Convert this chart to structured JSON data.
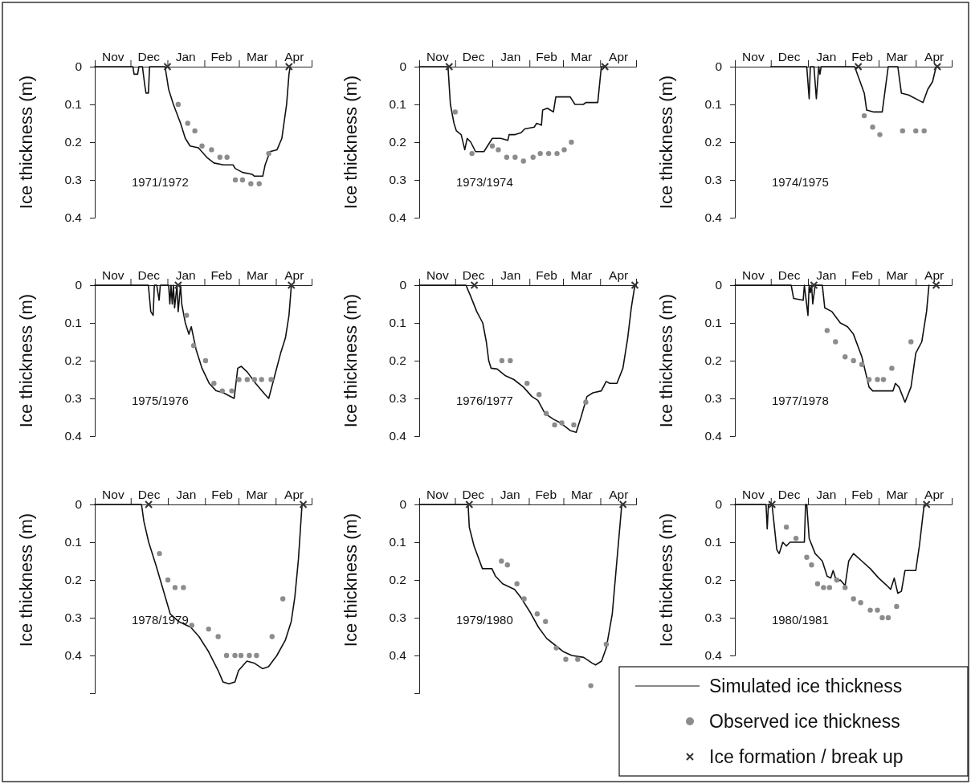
{
  "chart_data": [
    {
      "type": "line",
      "title": "1971/1972",
      "ylabel": "Ice thickness (m)",
      "xlim": [
        "1971-11-01",
        "1972-05-01"
      ],
      "ylim": [
        0.4,
        0
      ],
      "yticks": [
        0,
        0.1,
        0.2,
        0.3,
        0.4
      ],
      "xticks": [
        {
          "value": "1971-11-01",
          "label": null
        },
        {
          "value": "1971-11-16",
          "label": "Nov"
        },
        {
          "value": "1971-12-01",
          "label": null
        },
        {
          "value": "1971-12-16",
          "label": "Dec"
        },
        {
          "value": "1972-01-01",
          "label": null
        },
        {
          "value": "1972-01-16",
          "label": "Jan"
        },
        {
          "value": "1972-02-01",
          "label": null
        },
        {
          "value": "1972-02-15",
          "label": "Feb"
        },
        {
          "value": "1972-03-01",
          "label": null
        },
        {
          "value": "1972-03-16",
          "label": "Mar"
        },
        {
          "value": "1972-04-01",
          "label": null
        },
        {
          "value": "1972-04-16",
          "label": "Apr"
        },
        {
          "value": "1972-05-01",
          "label": null
        }
      ],
      "series": [
        {
          "type": "line",
          "color": "#111111",
          "marker": "none",
          "x": [
            "1971-11-01",
            "1971-12-03",
            "1971-12-04",
            "1971-12-07",
            "1971-12-08",
            "1971-12-11",
            "1971-12-13",
            "1971-12-14",
            "1971-12-16",
            "1971-12-17",
            "1971-12-30",
            "1972-01-02",
            "1972-01-06",
            "1972-01-12",
            "1972-01-16",
            "1972-01-20",
            "1972-01-27",
            "1972-02-03",
            "1972-02-09",
            "1972-02-17",
            "1972-02-25",
            "1972-02-27",
            "1972-03-04",
            "1972-03-12",
            "1972-03-14",
            "1972-03-21",
            "1972-03-23",
            "1972-03-27",
            "1972-04-02",
            "1972-04-06",
            "1972-04-10",
            "1972-04-12",
            "1972-04-13"
          ],
          "values": [
            0,
            0,
            0.02,
            0.02,
            0,
            0,
            0.05,
            0.07,
            0.07,
            0,
            0,
            0.06,
            0.1,
            0.15,
            0.19,
            0.21,
            0.215,
            0.24,
            0.255,
            0.26,
            0.26,
            0.27,
            0.28,
            0.285,
            0.29,
            0.29,
            0.26,
            0.225,
            0.22,
            0.19,
            0.1,
            0.02,
            0
          ]
        },
        {
          "type": "scatter",
          "color": "#8c8c8c",
          "marker": "circle",
          "x": [
            "1972-01-10",
            "1972-01-18",
            "1972-01-24",
            "1972-01-30",
            "1972-02-07",
            "1972-02-14",
            "1972-02-20",
            "1972-02-27",
            "1972-03-04",
            "1972-03-11",
            "1972-03-18",
            "1972-03-26"
          ],
          "values": [
            0.1,
            0.15,
            0.17,
            0.21,
            0.22,
            0.24,
            0.24,
            0.3,
            0.3,
            0.31,
            0.31,
            0.23
          ]
        },
        {
          "type": "scatter",
          "color": "#333333",
          "marker": "cross",
          "x": [
            "1972-01-01",
            "1972-04-12"
          ],
          "values": [
            0,
            0
          ]
        }
      ]
    },
    {
      "type": "line",
      "title": "1973/1974",
      "ylabel": "Ice thickness (m)",
      "xlim": [
        "1973-11-01",
        "1974-05-01"
      ],
      "ylim": [
        0.4,
        0
      ],
      "yticks": [
        0,
        0.1,
        0.2,
        0.3,
        0.4
      ],
      "xticks": [
        {
          "value": "1973-11-01",
          "label": null
        },
        {
          "value": "1973-11-16",
          "label": "Nov"
        },
        {
          "value": "1973-12-01",
          "label": null
        },
        {
          "value": "1973-12-16",
          "label": "Dec"
        },
        {
          "value": "1974-01-01",
          "label": null
        },
        {
          "value": "1974-01-16",
          "label": "Jan"
        },
        {
          "value": "1974-02-01",
          "label": null
        },
        {
          "value": "1974-02-15",
          "label": "Feb"
        },
        {
          "value": "1974-03-01",
          "label": null
        },
        {
          "value": "1974-03-16",
          "label": "Mar"
        },
        {
          "value": "1974-04-01",
          "label": null
        },
        {
          "value": "1974-04-16",
          "label": "Apr"
        },
        {
          "value": "1974-05-01",
          "label": null
        }
      ],
      "series": [
        {
          "type": "line",
          "color": "#111111",
          "marker": "none",
          "x": [
            "1973-11-01",
            "1973-11-25",
            "1973-11-26",
            "1973-11-27",
            "1973-11-30",
            "1973-12-02",
            "1973-12-06",
            "1973-12-09",
            "1973-12-11",
            "1973-12-14",
            "1973-12-18",
            "1973-12-25",
            "1973-12-30",
            "1974-01-01",
            "1974-01-08",
            "1974-01-14",
            "1974-01-15",
            "1974-01-20",
            "1974-01-25",
            "1974-01-28",
            "1974-02-05",
            "1974-02-07",
            "1974-02-11",
            "1974-02-12",
            "1974-02-16",
            "1974-02-21",
            "1974-02-23",
            "1974-03-01",
            "1974-03-07",
            "1974-03-11",
            "1974-03-18",
            "1974-03-20",
            "1974-03-30",
            "1974-04-02",
            "1974-04-06"
          ],
          "values": [
            0,
            0,
            0.05,
            0.1,
            0.15,
            0.17,
            0.18,
            0.22,
            0.19,
            0.2,
            0.225,
            0.225,
            0.2,
            0.19,
            0.19,
            0.195,
            0.18,
            0.18,
            0.175,
            0.165,
            0.16,
            0.15,
            0.155,
            0.115,
            0.11,
            0.12,
            0.08,
            0.08,
            0.08,
            0.1,
            0.1,
            0.095,
            0.095,
            0,
            0
          ]
        },
        {
          "type": "scatter",
          "color": "#8c8c8c",
          "marker": "circle",
          "x": [
            "1973-12-01",
            "1973-12-15",
            "1974-01-01",
            "1974-01-06",
            "1974-01-13",
            "1974-01-20",
            "1974-01-27",
            "1974-02-04",
            "1974-02-10",
            "1974-02-17",
            "1974-02-24",
            "1974-03-02",
            "1974-03-08"
          ],
          "values": [
            0.12,
            0.23,
            0.21,
            0.22,
            0.24,
            0.24,
            0.25,
            0.24,
            0.23,
            0.23,
            0.23,
            0.22,
            0.2
          ]
        },
        {
          "type": "scatter",
          "color": "#333333",
          "marker": "cross",
          "x": [
            "1973-11-26",
            "1974-04-05"
          ],
          "values": [
            0,
            0
          ]
        }
      ]
    },
    {
      "type": "line",
      "title": "1974/1975",
      "ylabel": "Ice thickness (m)",
      "xlim": [
        "1974-11-01",
        "1975-05-01"
      ],
      "ylim": [
        0.4,
        0
      ],
      "yticks": [
        0,
        0.1,
        0.2,
        0.3,
        0.4
      ],
      "xticks": [
        {
          "value": "1974-11-01",
          "label": null
        },
        {
          "value": "1974-11-16",
          "label": "Nov"
        },
        {
          "value": "1974-12-01",
          "label": null
        },
        {
          "value": "1974-12-16",
          "label": "Dec"
        },
        {
          "value": "1975-01-01",
          "label": null
        },
        {
          "value": "1975-01-16",
          "label": "Jan"
        },
        {
          "value": "1975-02-01",
          "label": null
        },
        {
          "value": "1975-02-15",
          "label": "Feb"
        },
        {
          "value": "1975-03-01",
          "label": null
        },
        {
          "value": "1975-03-16",
          "label": "Mar"
        },
        {
          "value": "1975-04-01",
          "label": null
        },
        {
          "value": "1975-04-16",
          "label": "Apr"
        },
        {
          "value": "1975-05-01",
          "label": null
        }
      ],
      "series": [
        {
          "type": "line",
          "color": "#111111",
          "marker": "none",
          "x": [
            "1974-12-01",
            "1974-12-31",
            "1975-01-02",
            "1975-01-03",
            "1975-01-06",
            "1975-01-08",
            "1975-01-10",
            "1975-01-11",
            "1975-01-12",
            "1975-02-09",
            "1975-02-17",
            "1975-02-19",
            "1975-02-25",
            "1975-03-04",
            "1975-03-09",
            "1975-03-17",
            "1975-03-20",
            "1975-03-26",
            "1975-04-07",
            "1975-04-11",
            "1975-04-15",
            "1975-04-18"
          ],
          "values": [
            0,
            0,
            0.085,
            0,
            0,
            0.085,
            0,
            0.02,
            0,
            0,
            0.07,
            0.115,
            0.12,
            0.12,
            0,
            0,
            0.07,
            0.075,
            0.095,
            0.06,
            0.04,
            0
          ]
        },
        {
          "type": "scatter",
          "color": "#8c8c8c",
          "marker": "circle",
          "x": [
            "1975-02-17",
            "1975-02-24",
            "1975-03-02",
            "1975-03-21",
            "1975-04-01",
            "1975-04-08"
          ],
          "values": [
            0.13,
            0.16,
            0.18,
            0.17,
            0.17,
            0.17
          ]
        },
        {
          "type": "scatter",
          "color": "#333333",
          "marker": "cross",
          "x": [
            "1975-02-12",
            "1975-04-19"
          ],
          "values": [
            0,
            0
          ]
        }
      ]
    },
    {
      "type": "line",
      "title": "1975/1976",
      "ylabel": "Ice thickness (m)",
      "xlim": [
        "1975-11-01",
        "1976-05-01"
      ],
      "ylim": [
        0.4,
        0
      ],
      "yticks": [
        0,
        0.1,
        0.2,
        0.3,
        0.4
      ],
      "xticks": [
        {
          "value": "1975-11-01",
          "label": null
        },
        {
          "value": "1975-11-16",
          "label": "Nov"
        },
        {
          "value": "1975-12-01",
          "label": null
        },
        {
          "value": "1975-12-16",
          "label": "Dec"
        },
        {
          "value": "1976-01-01",
          "label": null
        },
        {
          "value": "1976-01-16",
          "label": "Jan"
        },
        {
          "value": "1976-02-01",
          "label": null
        },
        {
          "value": "1976-02-15",
          "label": "Feb"
        },
        {
          "value": "1976-03-01",
          "label": null
        },
        {
          "value": "1976-03-16",
          "label": "Mar"
        },
        {
          "value": "1976-04-01",
          "label": null
        },
        {
          "value": "1976-04-16",
          "label": "Apr"
        },
        {
          "value": "1976-05-01",
          "label": null
        }
      ],
      "series": [
        {
          "type": "line",
          "color": "#111111",
          "marker": "none",
          "x": [
            "1975-11-01",
            "1975-12-16",
            "1975-12-18",
            "1975-12-20",
            "1975-12-21",
            "1975-12-23",
            "1975-12-25",
            "1975-12-26",
            "1976-01-02",
            "1976-01-03",
            "1976-01-04",
            "1976-01-05",
            "1976-01-06",
            "1976-01-07",
            "1976-01-09",
            "1976-01-10",
            "1976-01-12",
            "1976-01-13",
            "1976-01-16",
            "1976-01-19",
            "1976-01-21",
            "1976-01-25",
            "1976-01-30",
            "1976-02-05",
            "1976-02-11",
            "1976-02-17",
            "1976-02-26",
            "1976-02-29",
            "1976-03-03",
            "1976-03-08",
            "1976-03-15",
            "1976-03-23",
            "1976-03-26",
            "1976-03-31",
            "1976-04-05",
            "1976-04-09",
            "1976-04-12",
            "1976-04-14"
          ],
          "values": [
            0,
            0,
            0.07,
            0.08,
            0,
            0,
            0.04,
            0,
            0,
            0.05,
            0,
            0.05,
            0,
            0.06,
            0,
            0.07,
            0,
            0.05,
            0.1,
            0.13,
            0.11,
            0.17,
            0.22,
            0.26,
            0.28,
            0.285,
            0.3,
            0.22,
            0.215,
            0.23,
            0.26,
            0.29,
            0.3,
            0.24,
            0.18,
            0.14,
            0.08,
            0
          ]
        },
        {
          "type": "scatter",
          "color": "#8c8c8c",
          "marker": "circle",
          "x": [
            "1976-01-17",
            "1976-01-23",
            "1976-02-02",
            "1976-02-09",
            "1976-02-16",
            "1976-02-24",
            "1976-03-01",
            "1976-03-08",
            "1976-03-14",
            "1976-03-20",
            "1976-03-28"
          ],
          "values": [
            0.08,
            0.16,
            0.2,
            0.26,
            0.28,
            0.28,
            0.25,
            0.25,
            0.25,
            0.25,
            0.25
          ]
        },
        {
          "type": "scatter",
          "color": "#333333",
          "marker": "cross",
          "x": [
            "1976-01-10",
            "1976-04-14"
          ],
          "values": [
            0,
            0
          ]
        }
      ]
    },
    {
      "type": "line",
      "title": "1976/1977",
      "ylabel": "Ice thickness (m)",
      "xlim": [
        "1976-11-01",
        "1977-05-01"
      ],
      "ylim": [
        0.4,
        0
      ],
      "yticks": [
        0,
        0.1,
        0.2,
        0.3,
        0.4
      ],
      "xticks": [
        {
          "value": "1976-11-01",
          "label": null
        },
        {
          "value": "1976-11-16",
          "label": "Nov"
        },
        {
          "value": "1976-12-01",
          "label": null
        },
        {
          "value": "1976-12-16",
          "label": "Dec"
        },
        {
          "value": "1977-01-01",
          "label": null
        },
        {
          "value": "1977-01-16",
          "label": "Jan"
        },
        {
          "value": "1977-02-01",
          "label": null
        },
        {
          "value": "1977-02-15",
          "label": "Feb"
        },
        {
          "value": "1977-03-01",
          "label": null
        },
        {
          "value": "1977-03-16",
          "label": "Mar"
        },
        {
          "value": "1977-04-01",
          "label": null
        },
        {
          "value": "1977-04-16",
          "label": "Apr"
        },
        {
          "value": "1977-05-01",
          "label": null
        }
      ],
      "series": [
        {
          "type": "line",
          "color": "#111111",
          "marker": "none",
          "x": [
            "1976-11-01",
            "1976-12-10",
            "1976-12-14",
            "1976-12-19",
            "1976-12-24",
            "1976-12-27",
            "1976-12-29",
            "1976-12-31",
            "1977-01-05",
            "1977-01-12",
            "1977-01-19",
            "1977-01-27",
            "1977-02-03",
            "1977-02-08",
            "1977-02-14",
            "1977-02-21",
            "1977-02-27",
            "1977-03-07",
            "1977-03-12",
            "1977-03-16",
            "1977-03-21",
            "1977-03-26",
            "1977-04-02",
            "1977-04-06",
            "1977-04-09",
            "1977-04-15",
            "1977-04-20",
            "1977-04-24",
            "1977-04-27",
            "1977-04-30"
          ],
          "values": [
            0,
            0,
            0.03,
            0.07,
            0.1,
            0.15,
            0.2,
            0.22,
            0.222,
            0.24,
            0.25,
            0.27,
            0.295,
            0.305,
            0.34,
            0.355,
            0.365,
            0.385,
            0.39,
            0.35,
            0.295,
            0.285,
            0.28,
            0.255,
            0.26,
            0.26,
            0.22,
            0.14,
            0.06,
            0
          ]
        },
        {
          "type": "scatter",
          "color": "#8c8c8c",
          "marker": "circle",
          "x": [
            "1977-01-09",
            "1977-01-16",
            "1977-01-30",
            "1977-02-09",
            "1977-02-15",
            "1977-02-22",
            "1977-02-28",
            "1977-03-10",
            "1977-03-20"
          ],
          "values": [
            0.2,
            0.2,
            0.26,
            0.29,
            0.34,
            0.37,
            0.365,
            0.37,
            0.31
          ]
        },
        {
          "type": "scatter",
          "color": "#333333",
          "marker": "cross",
          "x": [
            "1976-12-17",
            "1977-04-30"
          ],
          "values": [
            0,
            0
          ]
        }
      ]
    },
    {
      "type": "line",
      "title": "1977/1978",
      "ylabel": "Ice thickness (m)",
      "xlim": [
        "1977-11-01",
        "1978-05-01"
      ],
      "ylim": [
        0.4,
        0
      ],
      "yticks": [
        0,
        0.1,
        0.2,
        0.3,
        0.4
      ],
      "xticks": [
        {
          "value": "1977-11-01",
          "label": null
        },
        {
          "value": "1977-11-16",
          "label": "Nov"
        },
        {
          "value": "1977-12-01",
          "label": null
        },
        {
          "value": "1977-12-16",
          "label": "Dec"
        },
        {
          "value": "1978-01-01",
          "label": null
        },
        {
          "value": "1978-01-16",
          "label": "Jan"
        },
        {
          "value": "1978-02-01",
          "label": null
        },
        {
          "value": "1978-02-15",
          "label": "Feb"
        },
        {
          "value": "1978-03-01",
          "label": null
        },
        {
          "value": "1978-03-16",
          "label": "Mar"
        },
        {
          "value": "1978-04-01",
          "label": null
        },
        {
          "value": "1978-04-16",
          "label": "Apr"
        },
        {
          "value": "1978-05-01",
          "label": null
        }
      ],
      "series": [
        {
          "type": "line",
          "color": "#111111",
          "marker": "none",
          "x": [
            "1977-11-01",
            "1977-12-18",
            "1977-12-20",
            "1977-12-28",
            "1977-12-29",
            "1978-01-01",
            "1978-01-02",
            "1978-01-03",
            "1978-01-04",
            "1978-01-05",
            "1978-01-07",
            "1978-01-13",
            "1978-01-15",
            "1978-01-21",
            "1978-01-28",
            "1978-02-03",
            "1978-02-08",
            "1978-02-15",
            "1978-02-21",
            "1978-02-24",
            "1978-03-06",
            "1978-03-13",
            "1978-03-15",
            "1978-03-18",
            "1978-03-23",
            "1978-03-28",
            "1978-04-01",
            "1978-04-06",
            "1978-04-10",
            "1978-04-12"
          ],
          "values": [
            0,
            0,
            0.035,
            0.04,
            0,
            0.08,
            0,
            0.02,
            0,
            0.05,
            0,
            0,
            0.06,
            0.07,
            0.1,
            0.11,
            0.13,
            0.19,
            0.27,
            0.28,
            0.28,
            0.28,
            0.26,
            0.27,
            0.31,
            0.27,
            0.18,
            0.15,
            0.07,
            0
          ]
        },
        {
          "type": "scatter",
          "color": "#8c8c8c",
          "marker": "circle",
          "x": [
            "1978-01-17",
            "1978-01-24",
            "1978-02-01",
            "1978-02-08",
            "1978-02-15",
            "1978-02-21",
            "1978-02-28",
            "1978-03-05",
            "1978-03-12",
            "1978-03-28"
          ],
          "values": [
            0.12,
            0.15,
            0.19,
            0.2,
            0.21,
            0.25,
            0.25,
            0.25,
            0.22,
            0.15
          ]
        },
        {
          "type": "scatter",
          "color": "#333333",
          "marker": "cross",
          "x": [
            "1978-01-06",
            "1978-04-18"
          ],
          "values": [
            0,
            0
          ]
        }
      ]
    },
    {
      "type": "line",
      "title": "1978/1979",
      "ylabel": "Ice thickness (m)",
      "xlim": [
        "1978-11-01",
        "1979-05-01"
      ],
      "ylim": [
        0.5,
        0
      ],
      "yticks": [
        0,
        0.1,
        0.2,
        0.3,
        0.4
      ],
      "xticks": [
        {
          "value": "1978-11-01",
          "label": null
        },
        {
          "value": "1978-11-16",
          "label": "Nov"
        },
        {
          "value": "1978-12-01",
          "label": null
        },
        {
          "value": "1978-12-16",
          "label": "Dec"
        },
        {
          "value": "1979-01-01",
          "label": null
        },
        {
          "value": "1979-01-16",
          "label": "Jan"
        },
        {
          "value": "1979-02-01",
          "label": null
        },
        {
          "value": "1979-02-15",
          "label": "Feb"
        },
        {
          "value": "1979-03-01",
          "label": null
        },
        {
          "value": "1979-03-16",
          "label": "Mar"
        },
        {
          "value": "1979-04-01",
          "label": null
        },
        {
          "value": "1979-04-16",
          "label": "Apr"
        },
        {
          "value": "1979-05-01",
          "label": null
        }
      ],
      "series": [
        {
          "type": "line",
          "color": "#111111",
          "marker": "none",
          "x": [
            "1978-11-01",
            "1978-12-10",
            "1978-12-12",
            "1978-12-16",
            "1978-12-22",
            "1978-12-28",
            "1979-01-03",
            "1979-01-10",
            "1979-01-20",
            "1979-01-27",
            "1979-02-04",
            "1979-02-12",
            "1979-02-16",
            "1979-02-21",
            "1979-02-26",
            "1979-03-01",
            "1979-03-08",
            "1979-03-14",
            "1979-03-21",
            "1979-03-26",
            "1979-04-02",
            "1979-04-09",
            "1979-04-14",
            "1979-04-17",
            "1979-04-20",
            "1979-04-23"
          ],
          "values": [
            0,
            0,
            0.045,
            0.1,
            0.16,
            0.225,
            0.29,
            0.31,
            0.325,
            0.35,
            0.39,
            0.44,
            0.47,
            0.475,
            0.47,
            0.44,
            0.415,
            0.42,
            0.435,
            0.43,
            0.4,
            0.36,
            0.31,
            0.245,
            0.145,
            0
          ]
        },
        {
          "type": "scatter",
          "color": "#8c8c8c",
          "marker": "circle",
          "x": [
            "1978-12-25",
            "1979-01-01",
            "1979-01-07",
            "1979-01-14",
            "1979-01-21",
            "1979-02-04",
            "1979-02-12",
            "1979-02-19",
            "1979-02-26",
            "1979-03-03",
            "1979-03-10",
            "1979-03-16",
            "1979-03-29",
            "1979-04-07"
          ],
          "values": [
            0.13,
            0.2,
            0.22,
            0.22,
            0.32,
            0.33,
            0.35,
            0.4,
            0.4,
            0.4,
            0.4,
            0.4,
            0.35,
            0.25
          ]
        },
        {
          "type": "scatter",
          "color": "#333333",
          "marker": "cross",
          "x": [
            "1978-12-16",
            "1979-04-24"
          ],
          "values": [
            0,
            0
          ]
        }
      ]
    },
    {
      "type": "line",
      "title": "1979/1980",
      "ylabel": "Ice thickness (m)",
      "xlim": [
        "1979-11-01",
        "1980-05-01"
      ],
      "ylim": [
        0.5,
        0
      ],
      "yticks": [
        0,
        0.1,
        0.2,
        0.3,
        0.4
      ],
      "xticks": [
        {
          "value": "1979-11-01",
          "label": null
        },
        {
          "value": "1979-11-16",
          "label": "Nov"
        },
        {
          "value": "1979-12-01",
          "label": null
        },
        {
          "value": "1979-12-16",
          "label": "Dec"
        },
        {
          "value": "1980-01-01",
          "label": null
        },
        {
          "value": "1980-01-16",
          "label": "Jan"
        },
        {
          "value": "1980-02-01",
          "label": null
        },
        {
          "value": "1980-02-15",
          "label": "Feb"
        },
        {
          "value": "1980-03-01",
          "label": null
        },
        {
          "value": "1980-03-16",
          "label": "Mar"
        },
        {
          "value": "1980-04-01",
          "label": null
        },
        {
          "value": "1980-04-16",
          "label": "Apr"
        },
        {
          "value": "1980-05-01",
          "label": null
        }
      ],
      "series": [
        {
          "type": "line",
          "color": "#111111",
          "marker": "none",
          "x": [
            "1979-11-01",
            "1979-12-12",
            "1979-12-13",
            "1979-12-17",
            "1979-12-24",
            "1980-01-01",
            "1980-01-04",
            "1980-01-10",
            "1980-01-20",
            "1980-01-25",
            "1980-02-02",
            "1980-02-09",
            "1980-02-16",
            "1980-02-24",
            "1980-03-01",
            "1980-03-08",
            "1980-03-18",
            "1980-03-25",
            "1980-03-28",
            "1980-04-02",
            "1980-04-06",
            "1980-04-11",
            "1980-04-15",
            "1980-04-19"
          ],
          "values": [
            0,
            0,
            0.06,
            0.11,
            0.17,
            0.17,
            0.19,
            0.21,
            0.225,
            0.245,
            0.285,
            0.325,
            0.355,
            0.375,
            0.39,
            0.4,
            0.405,
            0.42,
            0.425,
            0.415,
            0.38,
            0.29,
            0.145,
            0
          ]
        },
        {
          "type": "scatter",
          "color": "#8c8c8c",
          "marker": "circle",
          "x": [
            "1980-01-09",
            "1980-01-14",
            "1980-01-22",
            "1980-01-28",
            "1980-02-08",
            "1980-02-15",
            "1980-02-24",
            "1980-03-03",
            "1980-03-13",
            "1980-03-24",
            "1980-04-06"
          ],
          "values": [
            0.15,
            0.16,
            0.21,
            0.25,
            0.29,
            0.31,
            0.38,
            0.41,
            0.41,
            0.48,
            0.37
          ]
        },
        {
          "type": "scatter",
          "color": "#333333",
          "marker": "cross",
          "x": [
            "1979-12-13",
            "1980-04-20"
          ],
          "values": [
            0,
            0
          ]
        }
      ]
    },
    {
      "type": "line",
      "title": "1980/1981",
      "ylabel": "Ice thickness (m)",
      "xlim": [
        "1980-11-01",
        "1981-05-01"
      ],
      "ylim": [
        0.4,
        0
      ],
      "yticks": [
        0,
        0.1,
        0.2,
        0.3,
        0.4
      ],
      "legend": "bottom",
      "xticks": [
        {
          "value": "1980-11-01",
          "label": null
        },
        {
          "value": "1980-11-16",
          "label": "Nov"
        },
        {
          "value": "1980-12-01",
          "label": null
        },
        {
          "value": "1980-12-16",
          "label": "Dec"
        },
        {
          "value": "1981-01-01",
          "label": null
        },
        {
          "value": "1981-01-16",
          "label": "Jan"
        },
        {
          "value": "1981-02-01",
          "label": null
        },
        {
          "value": "1981-02-15",
          "label": "Feb"
        },
        {
          "value": "1981-03-01",
          "label": null
        },
        {
          "value": "1981-03-16",
          "label": "Mar"
        },
        {
          "value": "1981-04-01",
          "label": null
        },
        {
          "value": "1981-04-16",
          "label": "Apr"
        },
        {
          "value": "1981-05-01",
          "label": null
        }
      ],
      "series": [
        {
          "type": "line",
          "name": "Simulated ice thickness",
          "color": "#111111",
          "marker": "none",
          "x": [
            "1980-11-01",
            "1980-11-27",
            "1980-11-28",
            "1980-11-29",
            "1980-12-02",
            "1980-12-04",
            "1980-12-06",
            "1980-12-08",
            "1980-12-11",
            "1980-12-14",
            "1980-12-17",
            "1980-12-29",
            "1980-12-30",
            "1980-12-31",
            "1981-01-02",
            "1981-01-07",
            "1981-01-13",
            "1981-01-17",
            "1981-01-20",
            "1981-01-22",
            "1981-01-25",
            "1981-01-28",
            "1981-02-01",
            "1981-02-04",
            "1981-02-08",
            "1981-02-15",
            "1981-02-22",
            "1981-03-01",
            "1981-03-08",
            "1981-03-11",
            "1981-03-14",
            "1981-03-17",
            "1981-03-20",
            "1981-03-23",
            "1981-04-01",
            "1981-04-04",
            "1981-04-08"
          ],
          "values": [
            0,
            0,
            0.065,
            0,
            0,
            0.06,
            0.12,
            0.13,
            0.1,
            0.11,
            0.1,
            0.1,
            0,
            0,
            0.09,
            0.13,
            0.15,
            0.19,
            0.195,
            0.175,
            0.205,
            0.2,
            0.215,
            0.15,
            0.13,
            0.15,
            0.17,
            0.195,
            0.215,
            0.225,
            0.195,
            0.235,
            0.23,
            0.175,
            0.175,
            0.11,
            0
          ]
        },
        {
          "type": "scatter",
          "name": "Observed ice thickness",
          "color": "#8c8c8c",
          "marker": "circle",
          "x": [
            "1980-12-14",
            "1980-12-22",
            "1980-12-31",
            "1981-01-04",
            "1981-01-09",
            "1981-01-14",
            "1981-01-19",
            "1981-01-25",
            "1981-02-01",
            "1981-02-08",
            "1981-02-14",
            "1981-02-22",
            "1981-02-28",
            "1981-03-04",
            "1981-03-09",
            "1981-03-16"
          ],
          "values": [
            0.06,
            0.09,
            0.14,
            0.16,
            0.21,
            0.22,
            0.22,
            0.2,
            0.22,
            0.25,
            0.26,
            0.28,
            0.28,
            0.3,
            0.3,
            0.27
          ]
        },
        {
          "type": "scatter",
          "name": "Ice formation / break up",
          "color": "#333333",
          "marker": "cross",
          "x": [
            "1980-12-02",
            "1981-04-10"
          ],
          "values": [
            0,
            0
          ]
        }
      ]
    }
  ]
}
